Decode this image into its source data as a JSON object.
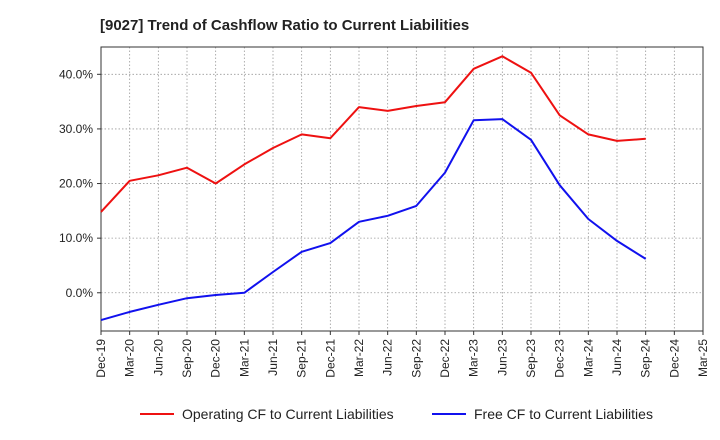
{
  "chart_data": {
    "type": "line",
    "title": "[9027]  Trend of Cashflow Ratio to Current Liabilities",
    "xlabel": "",
    "ylabel": "",
    "ylim": [
      -7,
      45
    ],
    "yticks": [
      0,
      10,
      20,
      30,
      40
    ],
    "ytick_labels": [
      "0.0%",
      "10.0%",
      "20.0%",
      "30.0%",
      "40.0%"
    ],
    "categories": [
      "Dec-19",
      "Mar-20",
      "Jun-20",
      "Sep-20",
      "Dec-20",
      "Mar-21",
      "Jun-21",
      "Sep-21",
      "Dec-21",
      "Mar-22",
      "Jun-22",
      "Sep-22",
      "Dec-22",
      "Mar-23",
      "Jun-23",
      "Sep-23",
      "Dec-23",
      "Mar-24",
      "Jun-24",
      "Sep-24",
      "Dec-24",
      "Mar-25"
    ],
    "grid": true,
    "legend_position": "bottom",
    "series": [
      {
        "name": "Operating CF to Current Liabilities",
        "color": "#ee1111",
        "values": [
          14.8,
          20.5,
          21.5,
          22.9,
          20.0,
          23.5,
          26.5,
          29.0,
          28.3,
          34.0,
          33.3,
          34.2,
          34.9,
          41.0,
          43.3,
          40.3,
          32.5,
          29.0,
          27.8,
          28.2,
          null,
          null
        ]
      },
      {
        "name": "Free CF to Current Liabilities",
        "color": "#1111ee",
        "values": [
          -5.0,
          -3.5,
          -2.2,
          -1.0,
          -0.4,
          0.0,
          3.8,
          7.5,
          9.1,
          13.0,
          14.1,
          15.9,
          22.0,
          31.6,
          31.8,
          28.0,
          19.7,
          13.5,
          9.5,
          6.2,
          null,
          null
        ]
      }
    ]
  }
}
